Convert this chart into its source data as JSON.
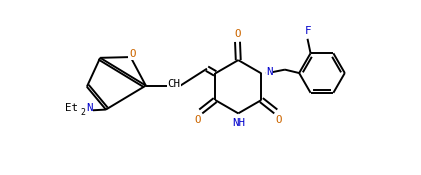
{
  "bg_color": "#ffffff",
  "bond_color": "#000000",
  "atom_colors": {
    "O": "#cc6600",
    "N": "#0000cc",
    "F": "#0000cc",
    "C": "#000000"
  },
  "figsize": [
    4.21,
    1.75
  ],
  "dpi": 100,
  "xlim": [
    0,
    10.5
  ],
  "ylim": [
    0.2,
    4.8
  ],
  "lw": 1.4,
  "fs": 7.8,
  "fs_sub": 6.0
}
